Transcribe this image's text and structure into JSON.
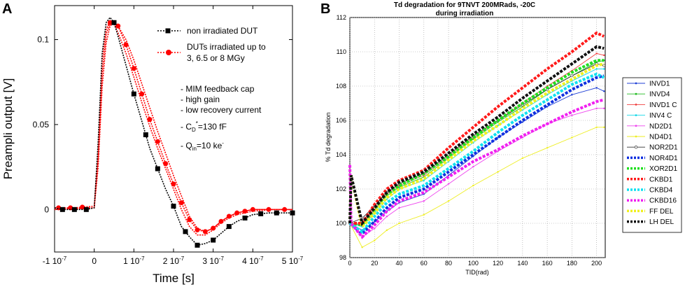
{
  "panel_a": {
    "label": "A",
    "notes": [
      "- MIM feedback cap",
      "- high gain",
      "- low recovery current"
    ],
    "cd_note": {
      "main": "- C",
      "sub": "D",
      "sup": "*",
      "tail": "=130 fF"
    },
    "qin_note": {
      "main": "- Q",
      "sub": "in",
      "tail": "=10 ke",
      "sup": "-"
    }
  },
  "panel_b": {
    "label": "B"
  },
  "chart_data": [
    {
      "type": "line",
      "title": "",
      "xlabel": "Time [s]",
      "ylabel": "Preampli output [V]",
      "xlim": [
        -1e-07,
        5e-07
      ],
      "ylim": [
        -0.025,
        0.12
      ],
      "x_ticks": [
        {
          "value": -1e-07,
          "label": "-1 10",
          "exp": "-7"
        },
        {
          "value": 0,
          "label": "0",
          "exp": ""
        },
        {
          "value": 1e-07,
          "label": "1 10",
          "exp": "-7"
        },
        {
          "value": 2e-07,
          "label": "2 10",
          "exp": "-7"
        },
        {
          "value": 3e-07,
          "label": "3 10",
          "exp": "-7"
        },
        {
          "value": 4e-07,
          "label": "4 10",
          "exp": "-7"
        },
        {
          "value": 5e-07,
          "label": "5 10",
          "exp": "-7"
        }
      ],
      "y_ticks": [
        {
          "value": 0,
          "label": "0"
        },
        {
          "value": 0.05,
          "label": "0.05"
        },
        {
          "value": 0.1,
          "label": "0.1"
        }
      ],
      "legend": [
        {
          "label": "non irradiated DUT",
          "color": "#000000",
          "marker": "square"
        },
        {
          "label": "DUTs irradiated up to",
          "label2": "3, 6.5 or 8 MGy",
          "color": "#ff0000",
          "marker": "circle"
        }
      ],
      "series": [
        {
          "name": "non irradiated DUT",
          "color": "#000000",
          "marker": "square",
          "x": [
            -1e-07,
            -8e-08,
            -5e-08,
            -2e-08,
            0,
            1e-08,
            2e-08,
            3e-08,
            4e-08,
            5e-08,
            6e-08,
            8e-08,
            1e-07,
            1.2e-07,
            1.4e-07,
            1.6e-07,
            1.8e-07,
            2e-07,
            2.2e-07,
            2.4e-07,
            2.6e-07,
            2.8e-07,
            3e-07,
            3.2e-07,
            3.4e-07,
            3.6e-07,
            3.8e-07,
            4e-07,
            4.4e-07,
            4.8e-07,
            5e-07
          ],
          "y": [
            0.001,
            0.0,
            0.0,
            0.0,
            0.001,
            0.04,
            0.092,
            0.11,
            0.113,
            0.11,
            0.102,
            0.085,
            0.068,
            0.052,
            0.036,
            0.024,
            0.012,
            0.002,
            -0.01,
            -0.016,
            -0.021,
            -0.02,
            -0.018,
            -0.014,
            -0.01,
            -0.007,
            -0.005,
            -0.003,
            -0.002,
            -0.002,
            -0.002
          ],
          "markers_x": [
            -8e-08,
            -5e-08,
            -2e-08,
            5e-08,
            1e-07,
            1.3e-07,
            1.6e-07,
            2e-07,
            2.3e-07,
            2.6e-07,
            3e-07,
            3.4e-07,
            3.8e-07,
            4.2e-07,
            4.6e-07,
            5e-07
          ]
        },
        {
          "name": "DUTs irradiated 1",
          "color": "#ff0000",
          "marker": "circle",
          "x": [
            -1e-07,
            -5e-08,
            0,
            1e-08,
            2e-08,
            3e-08,
            4e-08,
            5e-08,
            6e-08,
            8e-08,
            1e-07,
            1.2e-07,
            1.4e-07,
            1.6e-07,
            1.8e-07,
            2e-07,
            2.2e-07,
            2.4e-07,
            2.6e-07,
            2.8e-07,
            3e-07,
            3.2e-07,
            3.4e-07,
            3.6e-07,
            3.8e-07,
            4e-07,
            4.4e-07,
            4.8e-07,
            5e-07
          ],
          "y": [
            0.001,
            0.001,
            0.002,
            0.03,
            0.08,
            0.103,
            0.11,
            0.111,
            0.108,
            0.097,
            0.083,
            0.068,
            0.053,
            0.04,
            0.027,
            0.015,
            0.004,
            -0.006,
            -0.012,
            -0.013,
            -0.011,
            -0.007,
            -0.004,
            -0.002,
            -0.001,
            0.0,
            0.0,
            0.0,
            0.0
          ],
          "markers_x": [
            -9e-08,
            -6e-08,
            -3e-08,
            4e-08,
            6e-08,
            8e-08,
            1e-07,
            1.2e-07,
            1.4e-07,
            1.6e-07,
            1.8e-07,
            2e-07,
            2.2e-07,
            2.4e-07,
            2.6e-07,
            2.8e-07,
            3e-07,
            3.2e-07,
            3.4e-07,
            3.6e-07,
            3.8e-07,
            4e-07,
            4.4e-07,
            4.8e-07
          ]
        },
        {
          "name": "DUTs irradiated 2",
          "color": "#ff0000",
          "marker": "circle",
          "x": [
            -1e-07,
            0,
            1e-08,
            2e-08,
            3e-08,
            4e-08,
            5e-08,
            6e-08,
            8e-08,
            1e-07,
            1.2e-07,
            1.4e-07,
            1.6e-07,
            1.8e-07,
            2e-07,
            2.2e-07,
            2.4e-07,
            2.6e-07,
            2.8e-07,
            3e-07,
            3.2e-07,
            3.4e-07,
            3.6e-07,
            4e-07,
            4.5e-07,
            5e-07
          ],
          "y": [
            0.0,
            0.001,
            0.025,
            0.072,
            0.098,
            0.108,
            0.11,
            0.108,
            0.1,
            0.088,
            0.074,
            0.06,
            0.046,
            0.033,
            0.02,
            0.008,
            -0.004,
            -0.011,
            -0.013,
            -0.011,
            -0.007,
            -0.004,
            -0.002,
            0.0,
            0.0,
            0.0
          ],
          "markers_x": []
        },
        {
          "name": "DUTs irradiated 3",
          "color": "#ff0000",
          "marker": "circle",
          "x": [
            -1e-07,
            0,
            1e-08,
            2e-08,
            3e-08,
            4e-08,
            5e-08,
            6e-08,
            8e-08,
            1e-07,
            1.2e-07,
            1.4e-07,
            1.6e-07,
            1.8e-07,
            2e-07,
            2.2e-07,
            2.4e-07,
            2.6e-07,
            2.8e-07,
            3e-07,
            3.2e-07,
            3.4e-07,
            3.6e-07,
            4e-07,
            4.5e-07,
            5e-07
          ],
          "y": [
            0.0,
            0.001,
            0.035,
            0.088,
            0.106,
            0.111,
            0.109,
            0.104,
            0.092,
            0.078,
            0.063,
            0.049,
            0.036,
            0.024,
            0.012,
            0.0,
            -0.01,
            -0.015,
            -0.015,
            -0.012,
            -0.008,
            -0.005,
            -0.003,
            -0.001,
            0.0,
            0.0
          ],
          "markers_x": []
        }
      ]
    },
    {
      "type": "line",
      "title": "Td degradation for 9TNVT  200MRads, -20C",
      "subtitle": "during irradiation",
      "xlabel": "TID(rad)",
      "ylabel": "% Td degradation",
      "xlim": [
        0,
        207
      ],
      "ylim": [
        98,
        112
      ],
      "x_ticks": [
        0,
        20,
        40,
        60,
        80,
        100,
        120,
        140,
        160,
        180,
        200
      ],
      "y_ticks": [
        98,
        100,
        102,
        104,
        106,
        108,
        110,
        112
      ],
      "grid": true,
      "legend": [
        "INVD1",
        "INVD4",
        "INVD1 C",
        "INV4 C",
        "ND2D1",
        "ND4D1",
        "NOR2D1",
        "NOR4D1",
        "XOR2D1",
        "CKBD1",
        "CKBD4",
        "CKBD16",
        "FF DEL",
        "LH DEL"
      ],
      "series": [
        {
          "name": "INVD1",
          "color": "#1f3fd6",
          "style": "thin",
          "marker": "dot",
          "x": [
            0,
            10,
            20,
            30,
            40,
            60,
            80,
            100,
            120,
            140,
            160,
            180,
            200,
            206
          ],
          "y": [
            100,
            99.6,
            100.1,
            100.7,
            101.2,
            101.7,
            102.8,
            103.9,
            105.0,
            105.9,
            106.8,
            107.5,
            107.9,
            107.7
          ]
        },
        {
          "name": "INVD4",
          "color": "#22bb22",
          "style": "thin",
          "marker": "dot",
          "x": [
            0,
            10,
            20,
            30,
            40,
            60,
            80,
            100,
            120,
            140,
            160,
            180,
            200,
            206
          ],
          "y": [
            100,
            99.9,
            100.7,
            101.6,
            102.1,
            102.7,
            103.8,
            104.9,
            105.9,
            106.8,
            107.8,
            108.6,
            109.4,
            109.5
          ]
        },
        {
          "name": "INVD1 C",
          "color": "#f04040",
          "style": "thin",
          "marker": "dot",
          "x": [
            0,
            10,
            20,
            30,
            40,
            60,
            80,
            100,
            120,
            140,
            160,
            180,
            200,
            206
          ],
          "y": [
            100,
            100.0,
            100.8,
            101.7,
            102.2,
            102.8,
            103.9,
            105.0,
            106.0,
            107.0,
            108.0,
            108.9,
            109.9,
            109.8
          ]
        },
        {
          "name": "INV4 C",
          "color": "#18d8e8",
          "style": "thin",
          "marker": "dot",
          "x": [
            0,
            10,
            20,
            30,
            40,
            60,
            80,
            100,
            120,
            140,
            160,
            180,
            200,
            206
          ],
          "y": [
            100,
            99.8,
            100.6,
            101.4,
            102.0,
            102.5,
            103.6,
            104.7,
            105.7,
            106.6,
            107.5,
            108.3,
            109.0,
            109.0
          ]
        },
        {
          "name": "ND2D1",
          "color": "#ee44ee",
          "style": "thin",
          "marker": "dot",
          "x": [
            0,
            10,
            20,
            30,
            40,
            60,
            80,
            100,
            120,
            140,
            160,
            180,
            200,
            206
          ],
          "y": [
            100,
            99.2,
            99.7,
            100.4,
            100.9,
            101.3,
            102.3,
            103.3,
            104.2,
            105.0,
            105.8,
            106.3,
            106.7,
            106.7
          ]
        },
        {
          "name": "ND4D1",
          "color": "#eeee22",
          "style": "thin",
          "marker": "dot",
          "x": [
            0,
            10,
            20,
            30,
            40,
            60,
            80,
            100,
            120,
            140,
            160,
            180,
            200,
            206
          ],
          "y": [
            100,
            98.6,
            99.0,
            99.6,
            100.0,
            100.5,
            101.3,
            102.2,
            103.0,
            103.8,
            104.4,
            105.0,
            105.6,
            105.6
          ]
        },
        {
          "name": "NOR2D1",
          "color": "#333333",
          "style": "thin",
          "marker": "ring",
          "x": [
            0,
            10,
            20,
            30,
            40,
            60,
            80,
            100,
            120,
            140,
            160,
            180,
            200,
            206
          ],
          "y": [
            100,
            100.3,
            101.0,
            101.8,
            102.3,
            102.9,
            104.0,
            105.1,
            106.0,
            106.9,
            107.8,
            108.6,
            109.3,
            109.2
          ]
        },
        {
          "name": "NOR4D1",
          "color": "#1030e0",
          "style": "thick",
          "marker": "square",
          "x": [
            0,
            10,
            20,
            30,
            40,
            60,
            80,
            100,
            120,
            140,
            160,
            180,
            200,
            206
          ],
          "y": [
            100,
            99.4,
            100.1,
            100.9,
            101.5,
            102.0,
            103.0,
            104.0,
            105.0,
            106.0,
            106.9,
            107.8,
            108.5,
            108.6
          ]
        },
        {
          "name": "XOR2D1",
          "color": "#20e020",
          "style": "thick",
          "marker": "square",
          "x": [
            0,
            10,
            20,
            30,
            40,
            60,
            80,
            100,
            120,
            140,
            160,
            180,
            200,
            206
          ],
          "y": [
            100,
            99.9,
            100.8,
            101.7,
            102.2,
            102.9,
            103.9,
            105.0,
            106.0,
            107.0,
            107.9,
            108.8,
            109.5,
            109.5
          ]
        },
        {
          "name": "CKBD1",
          "color": "#ff1a1a",
          "style": "thick",
          "marker": "square",
          "x": [
            0,
            10,
            20,
            30,
            40,
            60,
            80,
            100,
            120,
            140,
            160,
            180,
            200,
            206
          ],
          "y": [
            100,
            100.0,
            101.1,
            102.0,
            102.5,
            103.1,
            104.4,
            105.6,
            106.8,
            107.9,
            109.0,
            110.0,
            111.1,
            110.9
          ]
        },
        {
          "name": "CKBD4",
          "color": "#10e0f0",
          "style": "thick",
          "marker": "square",
          "x": [
            0,
            10,
            20,
            30,
            40,
            60,
            80,
            100,
            120,
            140,
            160,
            180,
            200,
            206
          ],
          "y": [
            100,
            99.5,
            100.4,
            101.2,
            101.7,
            102.2,
            103.2,
            104.2,
            105.3,
            106.3,
            107.2,
            108.1,
            108.7,
            108.5
          ]
        },
        {
          "name": "CKBD16",
          "color": "#f020f0",
          "style": "thick",
          "marker": "square",
          "x": [
            0,
            1,
            10,
            20,
            30,
            40,
            60,
            80,
            100,
            120,
            140,
            160,
            180,
            200,
            206
          ],
          "y": [
            103.4,
            100,
            99.2,
            99.9,
            100.7,
            101.3,
            101.8,
            102.7,
            103.6,
            104.3,
            105.1,
            105.8,
            106.5,
            107.1,
            107.2
          ]
        },
        {
          "name": "FF DEL",
          "color": "#f0f020",
          "style": "thick",
          "marker": "square",
          "x": [
            0,
            1,
            10,
            20,
            30,
            40,
            60,
            80,
            100,
            120,
            140,
            160,
            180,
            200,
            206
          ],
          "y": [
            100,
            102.8,
            99.8,
            100.6,
            101.5,
            102.0,
            102.6,
            103.7,
            104.8,
            105.7,
            106.7,
            107.6,
            108.4,
            109.2,
            109.3
          ]
        },
        {
          "name": "LH DEL",
          "color": "#111111",
          "style": "thick",
          "marker": "square",
          "x": [
            0,
            1,
            10,
            20,
            30,
            40,
            60,
            80,
            100,
            120,
            140,
            160,
            180,
            200,
            206
          ],
          "y": [
            100,
            102.8,
            100.0,
            100.9,
            101.8,
            102.4,
            103.0,
            104.1,
            105.2,
            106.2,
            107.3,
            108.3,
            109.3,
            110.3,
            110.2
          ]
        }
      ]
    }
  ]
}
